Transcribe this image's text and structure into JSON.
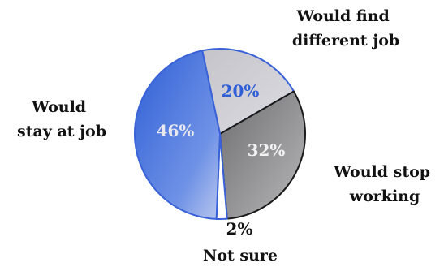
{
  "chart_data": {
    "type": "pie",
    "title": "",
    "slices": [
      {
        "label": "Would find different job",
        "label_lines": [
          "Would find",
          "different job"
        ],
        "value": 20,
        "display": "20%",
        "color": "#c8c8cc",
        "text_color": "#2f5fd6"
      },
      {
        "label": "Would stop working",
        "label_lines": [
          "Would stop",
          "working"
        ],
        "value": 32,
        "display": "32%",
        "color": "#8c8c8c",
        "text_color": "#f2f2f2"
      },
      {
        "label": "Not sure",
        "label_lines": [
          "Not sure"
        ],
        "value": 2,
        "display": "2%",
        "color": "#ffffff",
        "text_color": "#111111"
      },
      {
        "label": "Would stay at job",
        "label_lines": [
          "Would",
          "stay at job"
        ],
        "value": 46,
        "display": "46%",
        "color": "#4a78e0",
        "text_color": "#e8e8ee"
      }
    ]
  }
}
